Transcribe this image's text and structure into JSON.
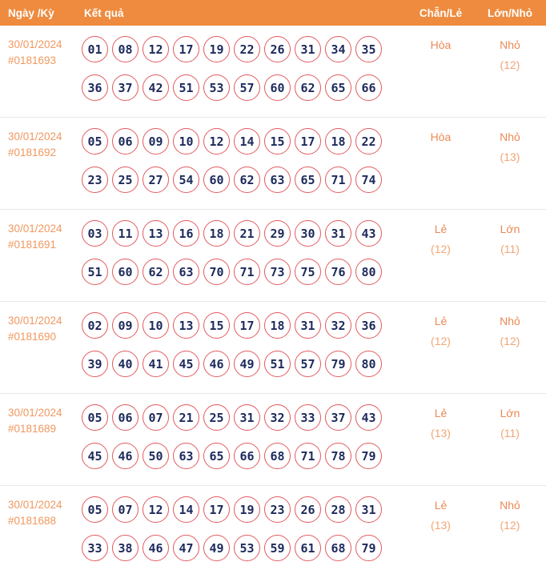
{
  "header": {
    "date_label": "Ngày /Kỳ",
    "result_label": "Kết quả",
    "parity_label": "Chẵn/Lẻ",
    "size_label": "Lớn/Nhỏ"
  },
  "colors": {
    "header-bg": "#EE8B3E",
    "header-text": "#FFFFFF",
    "date-text": "#F0985F",
    "ball-border": "#E25B60",
    "ball-number": "#1D2A5C",
    "value-text": "#EA8A55",
    "count-text": "#F2A575",
    "separator": "#E8E8E8"
  },
  "rows": [
    {
      "date": "30/01/2024",
      "draw_id": "#0181693",
      "numbers_line1": [
        "01",
        "08",
        "12",
        "17",
        "19",
        "22",
        "26",
        "31",
        "34",
        "35"
      ],
      "numbers_line2": [
        "36",
        "37",
        "42",
        "51",
        "53",
        "57",
        "60",
        "62",
        "65",
        "66"
      ],
      "parity": "Hòa",
      "parity_count": "",
      "size": "Nhỏ",
      "size_count": "(12)"
    },
    {
      "date": "30/01/2024",
      "draw_id": "#0181692",
      "numbers_line1": [
        "05",
        "06",
        "09",
        "10",
        "12",
        "14",
        "15",
        "17",
        "18",
        "22"
      ],
      "numbers_line2": [
        "23",
        "25",
        "27",
        "54",
        "60",
        "62",
        "63",
        "65",
        "71",
        "74"
      ],
      "parity": "Hòa",
      "parity_count": "",
      "size": "Nhỏ",
      "size_count": "(13)"
    },
    {
      "date": "30/01/2024",
      "draw_id": "#0181691",
      "numbers_line1": [
        "03",
        "11",
        "13",
        "16",
        "18",
        "21",
        "29",
        "30",
        "31",
        "43"
      ],
      "numbers_line2": [
        "51",
        "60",
        "62",
        "63",
        "70",
        "71",
        "73",
        "75",
        "76",
        "80"
      ],
      "parity": "Lẻ",
      "parity_count": "(12)",
      "size": "Lớn",
      "size_count": "(11)"
    },
    {
      "date": "30/01/2024",
      "draw_id": "#0181690",
      "numbers_line1": [
        "02",
        "09",
        "10",
        "13",
        "15",
        "17",
        "18",
        "31",
        "32",
        "36"
      ],
      "numbers_line2": [
        "39",
        "40",
        "41",
        "45",
        "46",
        "49",
        "51",
        "57",
        "79",
        "80"
      ],
      "parity": "Lẻ",
      "parity_count": "(12)",
      "size": "Nhỏ",
      "size_count": "(12)"
    },
    {
      "date": "30/01/2024",
      "draw_id": "#0181689",
      "numbers_line1": [
        "05",
        "06",
        "07",
        "21",
        "25",
        "31",
        "32",
        "33",
        "37",
        "43"
      ],
      "numbers_line2": [
        "45",
        "46",
        "50",
        "63",
        "65",
        "66",
        "68",
        "71",
        "78",
        "79"
      ],
      "parity": "Lẻ",
      "parity_count": "(13)",
      "size": "Lớn",
      "size_count": "(11)"
    },
    {
      "date": "30/01/2024",
      "draw_id": "#0181688",
      "numbers_line1": [
        "05",
        "07",
        "12",
        "14",
        "17",
        "19",
        "23",
        "26",
        "28",
        "31"
      ],
      "numbers_line2": [
        "33",
        "38",
        "46",
        "47",
        "49",
        "53",
        "59",
        "61",
        "68",
        "79"
      ],
      "parity": "Lẻ",
      "parity_count": "(13)",
      "size": "Nhỏ",
      "size_count": "(12)"
    }
  ]
}
